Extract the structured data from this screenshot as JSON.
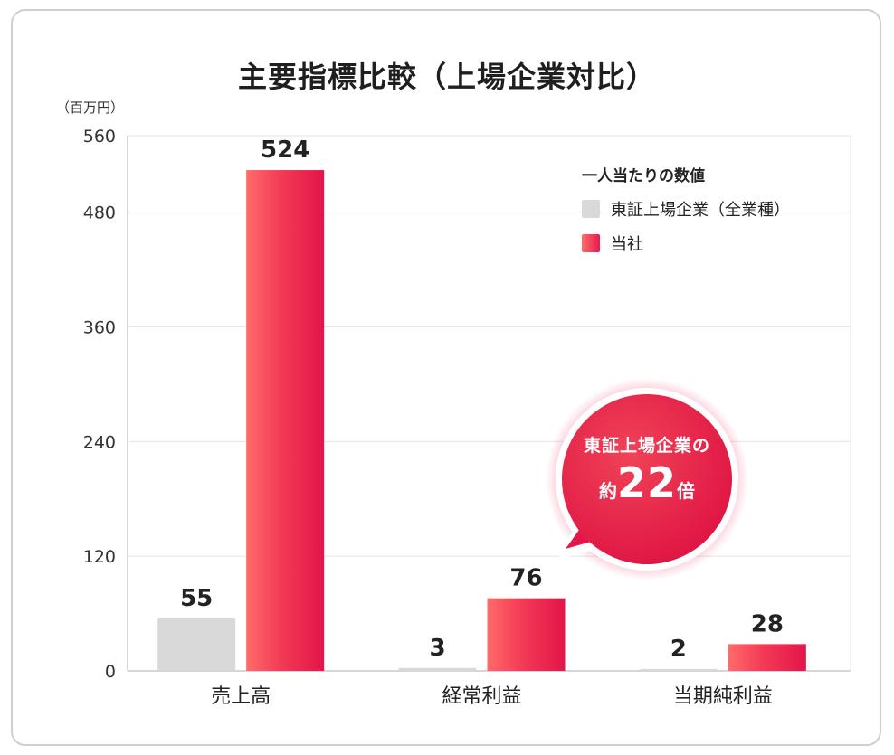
{
  "title": "主要指標比較（上場企業対比）",
  "unit": "（百万円）",
  "legend": {
    "title": "一人当たりの数値",
    "items": [
      {
        "label": "東証上場企業（全業種）",
        "color": "#d9d9d9"
      },
      {
        "label": "当社",
        "color": "#e8194a"
      }
    ]
  },
  "callout": {
    "line1": "東証上場企業の",
    "prefix": "約",
    "value": "22",
    "suffix": "倍",
    "color": "#e8194a"
  },
  "chart_data": {
    "type": "bar",
    "categories": [
      "売上高",
      "経常利益",
      "当期純利益"
    ],
    "series": [
      {
        "name": "東証上場企業（全業種）",
        "values": [
          55,
          3,
          2
        ],
        "color": "#d9d9d9"
      },
      {
        "name": "当社",
        "values": [
          524,
          76,
          28
        ],
        "color": "#e8194a"
      }
    ],
    "ylim": [
      0,
      560
    ],
    "yticks": [
      "0",
      "120",
      "240",
      "360",
      "480",
      "560"
    ],
    "ytick_values": [
      0,
      120,
      240,
      360,
      480,
      560
    ],
    "grid": true,
    "legend_position": "top-right"
  }
}
